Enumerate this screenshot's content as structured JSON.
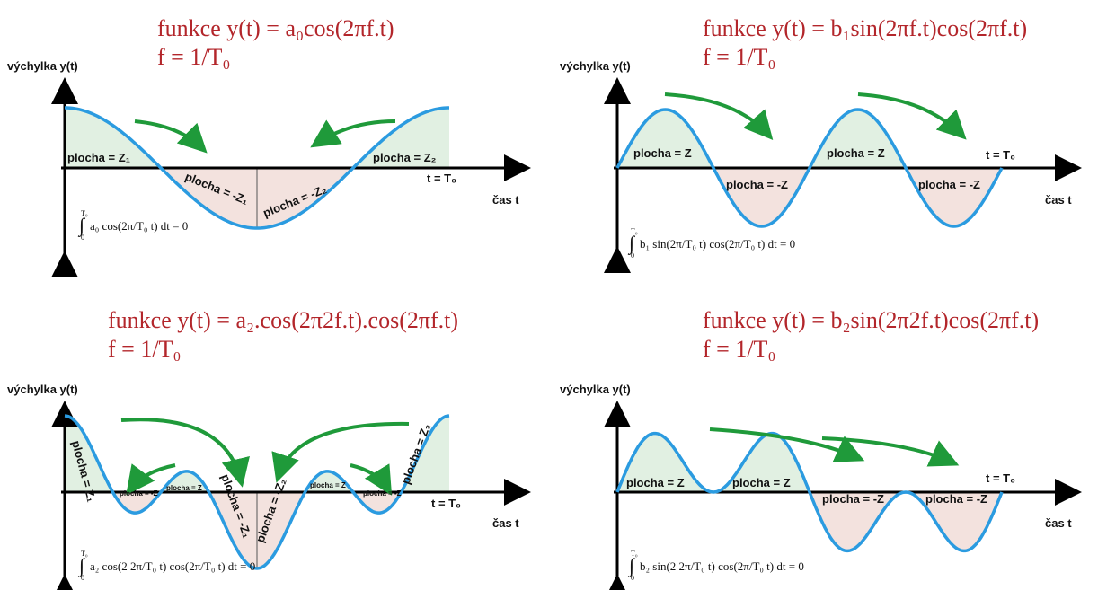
{
  "panels": [
    {
      "title": "funkce y(t) = a₀cos(2πf.t)",
      "subtitle": "f = 1/T₀",
      "y_axis_label": "výchylka y(t)",
      "x_axis_label": "čas t",
      "end_label": "t = T₀",
      "areas": [
        "plocha = Z₁",
        "plocha = -Z₁",
        "plocha = -Z₂",
        "plocha = Z₂"
      ],
      "formula": {
        "upper": "T₀",
        "lower": "0",
        "body": "a₀ cos(2π/T₀ t) dt = 0"
      }
    },
    {
      "title": "funkce y(t) = b₁sin(2πf.t)cos(2πf.t)",
      "subtitle": "f = 1/T₀",
      "y_axis_label": "výchylka y(t)",
      "x_axis_label": "čas t",
      "end_label": "t = T₀",
      "areas": [
        "plocha = Z",
        "plocha = -Z",
        "plocha = Z",
        "plocha = -Z"
      ],
      "formula": {
        "upper": "T₀",
        "lower": "0",
        "body": "b₁ sin(2π/T₀ t) cos(2π/T₀ t) dt = 0"
      }
    },
    {
      "title": "funkce y(t) = a₂.cos(2π2f.t).cos(2πf.t)",
      "subtitle": "f = 1/T₀",
      "y_axis_label": "výchylka y(t)",
      "x_axis_label": "čas t",
      "end_label": "t = T₀",
      "areas": [
        "plocha = Z₁",
        "plocha = -Z",
        "plocha = Z",
        "plocha = -Z₁",
        "plocha = -Z₂",
        "plocha = Z",
        "plocha = -Z",
        "plocha = Z₂"
      ],
      "formula": {
        "upper": "T₀",
        "lower": "0",
        "body": "a₂ cos(2 2π/T₀ t) cos(2π/T₀ t) dt = 0"
      }
    },
    {
      "title": "funkce y(t) = b₂sin(2π2f.t)cos(2πf.t)",
      "subtitle": "f = 1/T₀",
      "y_axis_label": "výchylka y(t)",
      "x_axis_label": "čas t",
      "end_label": "t = T₀",
      "areas": [
        "plocha = Z",
        "plocha = Z",
        "plocha = -Z",
        "plocha = -Z"
      ],
      "formula": {
        "upper": "T₀",
        "lower": "0",
        "body": "b₂ sin(2 2π/T₀ t) cos(2π/T₀ t) dt = 0"
      }
    }
  ]
}
